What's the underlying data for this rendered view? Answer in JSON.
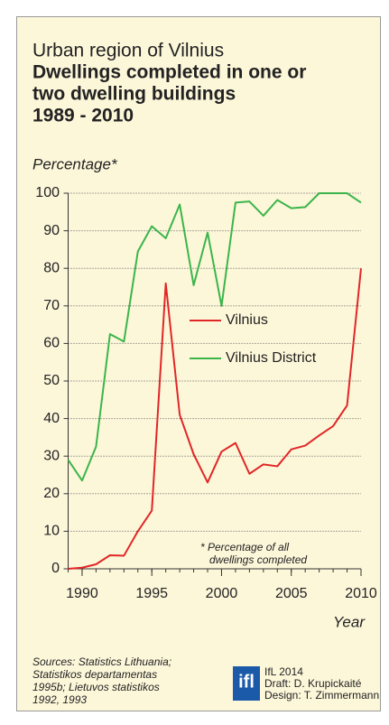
{
  "chart_data": {
    "type": "line",
    "title": "Urban region of Vilnius",
    "subtitle": [
      "Dwellings completed in one or",
      "two dwelling buildings",
      "1989 - 2010"
    ],
    "y_label": "Percentage*",
    "x_label": "Year",
    "x": [
      1989,
      1990,
      1991,
      1992,
      1993,
      1994,
      1995,
      1996,
      1997,
      1998,
      1999,
      2000,
      2001,
      2002,
      2003,
      2004,
      2005,
      2006,
      2007,
      2008,
      2009,
      2010
    ],
    "series": [
      {
        "name": "Vilnius",
        "color": "#e02727",
        "values": [
          0,
          0.3,
          1.2,
          3.6,
          3.5,
          10,
          15.5,
          76,
          41,
          30.5,
          23,
          31.2,
          33.5,
          25.3,
          27.8,
          27.3,
          31.8,
          32.8,
          35.5,
          38,
          43.5,
          80
        ]
      },
      {
        "name": "Vilnius District",
        "color": "#3bb54a",
        "values": [
          29,
          23.5,
          32.5,
          62.5,
          60.5,
          84.5,
          91.2,
          88,
          97,
          75.5,
          89.5,
          70,
          97.5,
          97.8,
          94,
          98.2,
          96,
          96.3,
          100,
          100,
          100,
          97.5
        ]
      }
    ],
    "xlim": [
      1989,
      2010
    ],
    "xticks": [
      1990,
      1995,
      2000,
      2005,
      2010
    ],
    "ylim": [
      0,
      100
    ],
    "yticks": [
      0,
      10,
      20,
      30,
      40,
      50,
      60,
      70,
      80,
      90,
      100
    ],
    "grid": true,
    "annotation": [
      "* Percentage of all",
      "dwellings completed"
    ],
    "sources": [
      "Sources: Statistics Lithuania;",
      "Statistikos departamentas",
      "1995b; Lietuvos statistikos",
      "1992, 1993"
    ],
    "logo": "ifl",
    "credits": [
      "IfL 2014",
      "Draft: D. Krupickaité",
      "Design: T. Zimmermann"
    ]
  }
}
